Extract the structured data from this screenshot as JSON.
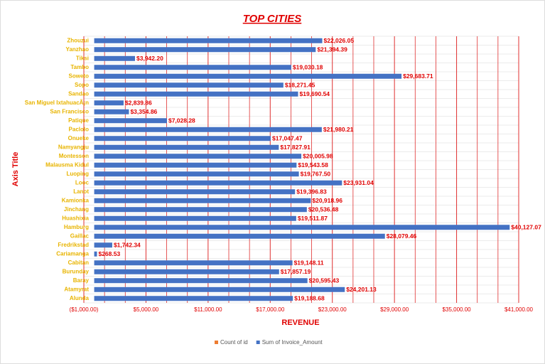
{
  "chart_data": {
    "type": "hbar",
    "title": "TOP CITIES",
    "x_axis_title": "REVENUE",
    "y_axis_title": "Axis Title",
    "categories": [
      "Zhouzui",
      "Yanzhao",
      "Tiksi",
      "Tambo",
      "Soweto",
      "Sopo",
      "Sandao",
      "San Miguel IxtahuacÃ¡n",
      "San Francisco",
      "Patique",
      "Paclolo",
      "Onueke",
      "Namyangju",
      "Montesson",
      "Malausma Kidul",
      "Luoping",
      "Looc",
      "Lanot",
      "Kamionka",
      "Jinchang",
      "Huashixia",
      "Hamburg",
      "Gaillac",
      "Fredrikstad",
      "Cariamanga",
      "Cabitan",
      "Burunday",
      "Baray",
      "Atamyrat",
      "Alunda"
    ],
    "series": [
      {
        "name": "Count of id",
        "color": "#ed7d31"
      },
      {
        "name": "Sum of Invoice_Amount",
        "color": "#4472c4",
        "values": [
          22026.05,
          21394.39,
          3942.2,
          19030.18,
          29683.71,
          18271.45,
          19690.54,
          2839.86,
          3354.86,
          7028.28,
          21980.21,
          17047.47,
          17827.91,
          20005.98,
          19543.58,
          19767.5,
          23931.04,
          19396.83,
          20918.96,
          20536.48,
          19511.87,
          40127.07,
          28079.46,
          1742.34,
          268.53,
          19148.11,
          17857.19,
          20595.43,
          24201.13,
          19188.68
        ],
        "value_labels": [
          "$22,026.05",
          "$21,394.39",
          "$3,942.20",
          "$19,030.18",
          "$29,683.71",
          "$18,271.45",
          "$19,690.54",
          "$2,839.86",
          "$3,354.86",
          "$7,028.28",
          "$21,980.21",
          "$17,047.47",
          "$17,827.91",
          "$20,005.98",
          "$19,543.58",
          "$19,767.50",
          "$23,931.04",
          "$19,396.83",
          "$20,918.96",
          "$20,536.48",
          "$19,511.87",
          "$40,127.07",
          "$28,079.46",
          "$1,742.34",
          "$268.53",
          "$19,148.11",
          "$17,857.19",
          "$20,595.43",
          "$24,201.13",
          "$19,188.68"
        ]
      }
    ],
    "xlim": [
      -1000,
      41000
    ],
    "xticks": [
      {
        "value": -1000,
        "label": "($1,000.00)"
      },
      {
        "value": 5000,
        "label": "$5,000.00"
      },
      {
        "value": 11000,
        "label": "$11,000.00"
      },
      {
        "value": 17000,
        "label": "$17,000.00"
      },
      {
        "value": 23000,
        "label": "$23,000.00"
      },
      {
        "value": 29000,
        "label": "$29,000.00"
      },
      {
        "value": 35000,
        "label": "$35,000.00"
      },
      {
        "value": 41000,
        "label": "$41,000.00"
      }
    ],
    "grid": true,
    "minor_grid_divisions": 3,
    "grid_color": "#e03030",
    "legend": "bottom"
  }
}
